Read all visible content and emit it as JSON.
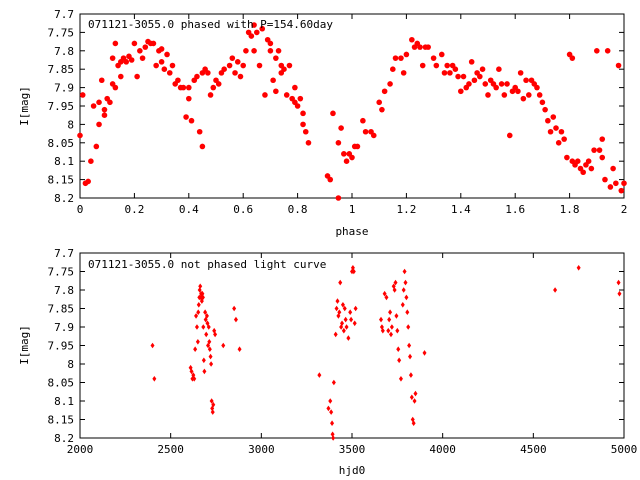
{
  "chart_data": [
    {
      "type": "scatter",
      "title": "071121-3055.0 phased with P=154.60day",
      "xlabel": "phase",
      "ylabel": "I[mag]",
      "xlim": [
        0,
        2
      ],
      "ylim": [
        8.2,
        7.7
      ],
      "y_inverted": true,
      "grid": false,
      "marker_color": "#ff0000",
      "xticks": [
        "0",
        "0.2",
        "0.4",
        "0.6",
        "0.8",
        "1",
        "1.2",
        "1.4",
        "1.6",
        "1.8",
        "2"
      ],
      "yticks": [
        "7.7",
        "7.75",
        "7.8",
        "7.85",
        "7.9",
        "7.95",
        "8",
        "8.05",
        "8.1",
        "8.15",
        "8.2"
      ],
      "points": [
        [
          0.0,
          8.03
        ],
        [
          0.01,
          7.92
        ],
        [
          0.02,
          8.16
        ],
        [
          0.03,
          8.155
        ],
        [
          0.04,
          8.1
        ],
        [
          0.05,
          7.95
        ],
        [
          0.06,
          8.06
        ],
        [
          0.07,
          8.0
        ],
        [
          0.07,
          7.94
        ],
        [
          0.08,
          7.88
        ],
        [
          0.09,
          7.96
        ],
        [
          0.09,
          7.975
        ],
        [
          0.1,
          7.93
        ],
        [
          0.11,
          7.94
        ],
        [
          0.12,
          7.89
        ],
        [
          0.12,
          7.82
        ],
        [
          0.13,
          7.9
        ],
        [
          0.13,
          7.78
        ],
        [
          0.14,
          7.84
        ],
        [
          0.15,
          7.87
        ],
        [
          0.15,
          7.83
        ],
        [
          0.16,
          7.82
        ],
        [
          0.17,
          7.83
        ],
        [
          0.18,
          7.815
        ],
        [
          0.19,
          7.825
        ],
        [
          0.2,
          7.78
        ],
        [
          0.21,
          7.87
        ],
        [
          0.22,
          7.8
        ],
        [
          0.23,
          7.82
        ],
        [
          0.24,
          7.79
        ],
        [
          0.25,
          7.775
        ],
        [
          0.26,
          7.78
        ],
        [
          0.27,
          7.78
        ],
        [
          0.28,
          7.84
        ],
        [
          0.29,
          7.8
        ],
        [
          0.3,
          7.83
        ],
        [
          0.3,
          7.795
        ],
        [
          0.31,
          7.85
        ],
        [
          0.32,
          7.81
        ],
        [
          0.33,
          7.86
        ],
        [
          0.34,
          7.84
        ],
        [
          0.35,
          7.89
        ],
        [
          0.36,
          7.88
        ],
        [
          0.37,
          7.9
        ],
        [
          0.38,
          7.9
        ],
        [
          0.39,
          7.98
        ],
        [
          0.4,
          7.93
        ],
        [
          0.4,
          7.9
        ],
        [
          0.41,
          7.99
        ],
        [
          0.42,
          7.88
        ],
        [
          0.43,
          7.87
        ],
        [
          0.44,
          8.02
        ],
        [
          0.45,
          8.06
        ],
        [
          0.45,
          7.86
        ],
        [
          0.46,
          7.85
        ],
        [
          0.47,
          7.86
        ],
        [
          0.48,
          7.92
        ],
        [
          0.49,
          7.9
        ],
        [
          0.5,
          7.88
        ],
        [
          0.51,
          7.89
        ],
        [
          0.52,
          7.86
        ],
        [
          0.53,
          7.85
        ],
        [
          0.55,
          7.84
        ],
        [
          0.56,
          7.82
        ],
        [
          0.57,
          7.86
        ],
        [
          0.58,
          7.83
        ],
        [
          0.59,
          7.87
        ],
        [
          0.6,
          7.84
        ],
        [
          0.61,
          7.8
        ],
        [
          0.62,
          7.75
        ],
        [
          0.63,
          7.76
        ],
        [
          0.64,
          7.73
        ],
        [
          0.64,
          7.8
        ],
        [
          0.65,
          7.75
        ],
        [
          0.66,
          7.84
        ],
        [
          0.67,
          7.74
        ],
        [
          0.68,
          7.92
        ],
        [
          0.69,
          7.77
        ],
        [
          0.7,
          7.8
        ],
        [
          0.7,
          7.78
        ],
        [
          0.71,
          7.88
        ],
        [
          0.72,
          7.82
        ],
        [
          0.72,
          7.91
        ],
        [
          0.73,
          7.8
        ],
        [
          0.74,
          7.86
        ],
        [
          0.74,
          7.84
        ],
        [
          0.75,
          7.85
        ],
        [
          0.76,
          7.92
        ],
        [
          0.77,
          7.84
        ],
        [
          0.78,
          7.93
        ],
        [
          0.79,
          7.94
        ],
        [
          0.79,
          7.9
        ],
        [
          0.8,
          7.95
        ],
        [
          0.81,
          7.93
        ],
        [
          0.82,
          8.0
        ],
        [
          0.82,
          7.97
        ],
        [
          0.83,
          8.02
        ],
        [
          0.84,
          8.05
        ],
        [
          0.91,
          8.14
        ],
        [
          0.92,
          8.15
        ],
        [
          0.93,
          7.97
        ],
        [
          0.95,
          8.2
        ],
        [
          0.95,
          8.05
        ],
        [
          0.96,
          8.01
        ],
        [
          0.97,
          8.08
        ],
        [
          0.98,
          8.1
        ],
        [
          0.99,
          8.08
        ],
        [
          1.0,
          8.09
        ],
        [
          1.01,
          8.06
        ],
        [
          1.02,
          8.06
        ],
        [
          1.04,
          7.99
        ],
        [
          1.05,
          8.02
        ],
        [
          1.07,
          8.02
        ],
        [
          1.08,
          8.03
        ],
        [
          1.1,
          7.94
        ],
        [
          1.11,
          7.96
        ],
        [
          1.12,
          7.91
        ],
        [
          1.14,
          7.89
        ],
        [
          1.15,
          7.85
        ],
        [
          1.16,
          7.82
        ],
        [
          1.18,
          7.82
        ],
        [
          1.19,
          7.86
        ],
        [
          1.2,
          7.81
        ],
        [
          1.22,
          7.77
        ],
        [
          1.23,
          7.79
        ],
        [
          1.24,
          7.78
        ],
        [
          1.25,
          7.79
        ],
        [
          1.26,
          7.84
        ],
        [
          1.27,
          7.79
        ],
        [
          1.28,
          7.79
        ],
        [
          1.3,
          7.82
        ],
        [
          1.31,
          7.84
        ],
        [
          1.33,
          7.81
        ],
        [
          1.34,
          7.86
        ],
        [
          1.35,
          7.84
        ],
        [
          1.36,
          7.86
        ],
        [
          1.37,
          7.84
        ],
        [
          1.38,
          7.85
        ],
        [
          1.39,
          7.87
        ],
        [
          1.4,
          7.91
        ],
        [
          1.41,
          7.87
        ],
        [
          1.42,
          7.9
        ],
        [
          1.43,
          7.89
        ],
        [
          1.44,
          7.83
        ],
        [
          1.45,
          7.88
        ],
        [
          1.46,
          7.86
        ],
        [
          1.47,
          7.87
        ],
        [
          1.48,
          7.85
        ],
        [
          1.49,
          7.89
        ],
        [
          1.5,
          7.92
        ],
        [
          1.51,
          7.88
        ],
        [
          1.52,
          7.89
        ],
        [
          1.53,
          7.9
        ],
        [
          1.54,
          7.85
        ],
        [
          1.55,
          7.89
        ],
        [
          1.56,
          7.92
        ],
        [
          1.57,
          7.89
        ],
        [
          1.58,
          8.03
        ],
        [
          1.59,
          7.91
        ],
        [
          1.6,
          7.9
        ],
        [
          1.61,
          7.91
        ],
        [
          1.62,
          7.86
        ],
        [
          1.63,
          7.93
        ],
        [
          1.64,
          7.88
        ],
        [
          1.65,
          7.92
        ],
        [
          1.66,
          7.88
        ],
        [
          1.67,
          7.89
        ],
        [
          1.68,
          7.9
        ],
        [
          1.69,
          7.92
        ],
        [
          1.7,
          7.94
        ],
        [
          1.71,
          7.96
        ],
        [
          1.72,
          7.99
        ],
        [
          1.73,
          8.02
        ],
        [
          1.74,
          7.98
        ],
        [
          1.75,
          8.01
        ],
        [
          1.76,
          8.05
        ],
        [
          1.77,
          8.02
        ],
        [
          1.78,
          8.04
        ],
        [
          1.79,
          8.09
        ],
        [
          1.8,
          7.81
        ],
        [
          1.81,
          7.82
        ],
        [
          1.81,
          8.1
        ],
        [
          1.82,
          8.11
        ],
        [
          1.83,
          8.1
        ],
        [
          1.84,
          8.12
        ],
        [
          1.85,
          8.13
        ],
        [
          1.86,
          8.11
        ],
        [
          1.87,
          8.1
        ],
        [
          1.88,
          8.12
        ],
        [
          1.89,
          8.07
        ],
        [
          1.9,
          7.8
        ],
        [
          1.91,
          8.07
        ],
        [
          1.92,
          8.09
        ],
        [
          1.92,
          8.04
        ],
        [
          1.93,
          8.15
        ],
        [
          1.94,
          7.8
        ],
        [
          1.95,
          8.17
        ],
        [
          1.96,
          8.12
        ],
        [
          1.97,
          8.16
        ],
        [
          1.98,
          7.84
        ],
        [
          1.99,
          8.18
        ],
        [
          2.0,
          8.16
        ]
      ]
    },
    {
      "type": "scatter",
      "title": "071121-3055.0 not phased light curve",
      "xlabel": "hjd0",
      "ylabel": "I[mag]",
      "xlim": [
        2000,
        5000
      ],
      "ylim": [
        8.2,
        7.7
      ],
      "y_inverted": true,
      "grid": false,
      "marker_color": "#ff0000",
      "xticks": [
        "2000",
        "2500",
        "3000",
        "3500",
        "4000",
        "4500",
        "5000"
      ],
      "yticks": [
        "7.7",
        "7.75",
        "7.8",
        "7.85",
        "7.9",
        "7.95",
        "8",
        "8.05",
        "8.1",
        "8.15",
        "8.2"
      ],
      "points": [
        [
          2400,
          7.95
        ],
        [
          2410,
          8.04
        ],
        [
          2610,
          8.01
        ],
        [
          2615,
          8.02
        ],
        [
          2620,
          8.04
        ],
        [
          2625,
          8.03
        ],
        [
          2630,
          8.04
        ],
        [
          2635,
          7.96
        ],
        [
          2640,
          7.87
        ],
        [
          2645,
          7.9
        ],
        [
          2650,
          7.94
        ],
        [
          2652,
          7.86
        ],
        [
          2655,
          7.84
        ],
        [
          2658,
          7.82
        ],
        [
          2660,
          7.8
        ],
        [
          2663,
          7.79
        ],
        [
          2666,
          7.82
        ],
        [
          2668,
          7.81
        ],
        [
          2670,
          7.82
        ],
        [
          2672,
          7.83
        ],
        [
          2675,
          7.81
        ],
        [
          2678,
          7.82
        ],
        [
          2680,
          7.9
        ],
        [
          2683,
          7.99
        ],
        [
          2686,
          8.02
        ],
        [
          2690,
          7.86
        ],
        [
          2693,
          7.88
        ],
        [
          2696,
          7.92
        ],
        [
          2700,
          7.87
        ],
        [
          2703,
          7.89
        ],
        [
          2706,
          7.95
        ],
        [
          2710,
          7.9
        ],
        [
          2713,
          7.94
        ],
        [
          2716,
          7.96
        ],
        [
          2720,
          7.98
        ],
        [
          2723,
          8.0
        ],
        [
          2726,
          8.1
        ],
        [
          2729,
          8.12
        ],
        [
          2732,
          8.13
        ],
        [
          2735,
          8.11
        ],
        [
          2740,
          7.91
        ],
        [
          2745,
          7.92
        ],
        [
          2790,
          7.95
        ],
        [
          2850,
          7.85
        ],
        [
          2860,
          7.88
        ],
        [
          2880,
          7.96
        ],
        [
          3320,
          8.03
        ],
        [
          3370,
          8.12
        ],
        [
          3380,
          8.1
        ],
        [
          3385,
          8.13
        ],
        [
          3390,
          8.16
        ],
        [
          3393,
          8.19
        ],
        [
          3396,
          8.2
        ],
        [
          3400,
          8.05
        ],
        [
          3410,
          7.92
        ],
        [
          3415,
          7.85
        ],
        [
          3420,
          7.83
        ],
        [
          3425,
          7.87
        ],
        [
          3430,
          7.86
        ],
        [
          3435,
          7.78
        ],
        [
          3440,
          7.9
        ],
        [
          3445,
          7.89
        ],
        [
          3450,
          7.84
        ],
        [
          3455,
          7.91
        ],
        [
          3460,
          7.85
        ],
        [
          3465,
          7.88
        ],
        [
          3470,
          7.9
        ],
        [
          3480,
          7.93
        ],
        [
          3490,
          7.86
        ],
        [
          3495,
          7.88
        ],
        [
          3500,
          7.75
        ],
        [
          3505,
          7.74
        ],
        [
          3510,
          7.75
        ],
        [
          3515,
          7.89
        ],
        [
          3520,
          7.85
        ],
        [
          3660,
          7.88
        ],
        [
          3665,
          7.9
        ],
        [
          3670,
          7.91
        ],
        [
          3680,
          7.81
        ],
        [
          3690,
          7.82
        ],
        [
          3700,
          7.91
        ],
        [
          3705,
          7.88
        ],
        [
          3710,
          7.86
        ],
        [
          3715,
          7.92
        ],
        [
          3720,
          7.9
        ],
        [
          3730,
          7.79
        ],
        [
          3735,
          7.8
        ],
        [
          3740,
          7.78
        ],
        [
          3745,
          7.87
        ],
        [
          3750,
          7.91
        ],
        [
          3755,
          7.96
        ],
        [
          3760,
          7.99
        ],
        [
          3770,
          8.04
        ],
        [
          3780,
          7.84
        ],
        [
          3785,
          7.8
        ],
        [
          3790,
          7.75
        ],
        [
          3795,
          7.78
        ],
        [
          3800,
          7.82
        ],
        [
          3805,
          7.86
        ],
        [
          3810,
          7.9
        ],
        [
          3815,
          7.95
        ],
        [
          3820,
          7.98
        ],
        [
          3825,
          8.03
        ],
        [
          3830,
          8.09
        ],
        [
          3835,
          8.15
        ],
        [
          3840,
          8.16
        ],
        [
          3845,
          8.1
        ],
        [
          3850,
          8.08
        ],
        [
          3900,
          7.97
        ],
        [
          4620,
          7.8
        ],
        [
          4750,
          7.74
        ],
        [
          4970,
          7.78
        ],
        [
          4975,
          7.81
        ]
      ]
    }
  ]
}
